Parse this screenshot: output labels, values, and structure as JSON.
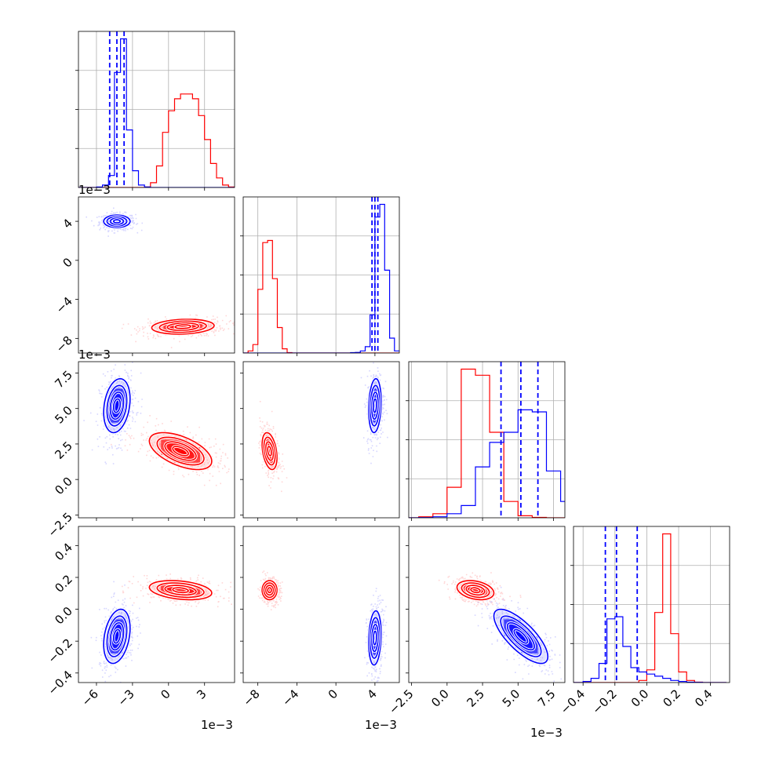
{
  "chart_data": {
    "type": "corner",
    "colors": {
      "series_a": "#0000ff",
      "series_b": "#ff0000",
      "grid": "#b0b0b0",
      "axes": "#000000"
    },
    "series": [
      {
        "color": "#0000ff",
        "quantiles": [
          [
            -0.0049,
            -0.0043,
            -0.0037
          ],
          [
            0.0037,
            0.004,
            0.0043
          ],
          [
            0.0038,
            0.0052,
            0.0064
          ],
          [
            -0.26,
            -0.19,
            -0.06
          ]
        ]
      },
      {
        "color": "#ff0000"
      }
    ],
    "params": [
      {
        "range": [
          -0.0075,
          0.0055
        ],
        "tick_values": [
          -0.006,
          -0.003,
          0.0,
          0.003
        ],
        "tick_labels": [
          "−6",
          "−3",
          "0",
          "3"
        ],
        "offset": "1e−3"
      },
      {
        "range": [
          -0.0095,
          0.0065
        ],
        "tick_values": [
          -0.008,
          -0.004,
          0.0,
          0.004
        ],
        "tick_labels": [
          "−8",
          "−4",
          "0",
          "4"
        ],
        "offset": "1e−3"
      },
      {
        "range": [
          -0.0027,
          0.0083
        ],
        "tick_values": [
          -0.0025,
          0.0,
          0.0025,
          0.005,
          0.0075
        ],
        "tick_labels": [
          "−2.5",
          "0.0",
          "2.5",
          "5.0",
          "7.5"
        ],
        "offset": "1e−3"
      },
      {
        "range": [
          -0.46,
          0.52
        ],
        "tick_values": [
          -0.4,
          -0.2,
          0.0,
          0.2,
          0.4
        ],
        "tick_labels": [
          "−0.4",
          "−0.2",
          "0.0",
          "0.2",
          "0.4"
        ],
        "offset": ""
      }
    ],
    "offset_labels": {
      "row1": "1e−3",
      "row2": "1e−3",
      "p0_bottom": "1e−3",
      "p1_bottom": "1e−3",
      "p2_bottom": "1e−3"
    },
    "histograms": [
      {
        "bins": [
          -0.0075,
          -0.007,
          -0.0065,
          -0.006,
          -0.0055,
          -0.005,
          -0.0045,
          -0.004,
          -0.0035,
          -0.003,
          -0.0025,
          -0.002,
          -0.0015,
          -0.001,
          -0.0005,
          0.0,
          0.0005,
          0.001,
          0.0015,
          0.002,
          0.0025,
          0.003,
          0.0035,
          0.004,
          0.0045,
          0.005,
          0.0055
        ],
        "counts_a": [
          0,
          0,
          0,
          0.2,
          1,
          5,
          48,
          62,
          24,
          7,
          1,
          0.2,
          0,
          0,
          0,
          0,
          0,
          0,
          0,
          0,
          0,
          0,
          0,
          0,
          0,
          0
        ],
        "counts_b": [
          0,
          0,
          0,
          0,
          0,
          0,
          0,
          0,
          0,
          0,
          0,
          0.2,
          2,
          9,
          23,
          32,
          37,
          39,
          39,
          37,
          30,
          20,
          10,
          4,
          1,
          0.2
        ]
      },
      {
        "bins": [
          -0.0095,
          -0.009,
          -0.0085,
          -0.008,
          -0.0075,
          -0.007,
          -0.0065,
          -0.006,
          -0.0055,
          -0.005,
          -0.0045,
          -0.004,
          -0.0035,
          -0.003,
          -0.0025,
          -0.002,
          -0.0015,
          -0.001,
          -0.0005,
          0.0,
          0.0005,
          0.001,
          0.0015,
          0.002,
          0.0025,
          0.003,
          0.0035,
          0.004,
          0.0045,
          0.005,
          0.0055,
          0.006,
          0.0065
        ],
        "counts_a": [
          0,
          0,
          0,
          0,
          0,
          0,
          0,
          0,
          0,
          0,
          0,
          0,
          0,
          0,
          0,
          0,
          0,
          0,
          0,
          0,
          0,
          0,
          0.2,
          0.3,
          1,
          3,
          18,
          64,
          70,
          39,
          7,
          1
        ],
        "counts_b": [
          0,
          1,
          4,
          30,
          52,
          53,
          35,
          12,
          2,
          0.2,
          0,
          0,
          0,
          0,
          0,
          0,
          0,
          0,
          0,
          0,
          0,
          0,
          0,
          0,
          0,
          0,
          0,
          0,
          0,
          0,
          0,
          0
        ]
      },
      {
        "bins": [
          -0.003,
          -0.002,
          -0.001,
          0.0,
          0.001,
          0.002,
          0.003,
          0.004,
          0.005,
          0.006,
          0.007,
          0.008,
          0.009
        ],
        "counts_a": [
          0,
          0.1,
          0.5,
          2,
          6,
          25,
          37,
          42,
          53,
          52,
          23,
          8
        ],
        "counts_b": [
          0,
          0.5,
          2,
          15,
          73,
          70,
          42,
          8,
          1,
          0.2,
          0,
          0
        ]
      },
      {
        "bins": [
          -0.5,
          -0.45,
          -0.4,
          -0.35,
          -0.3,
          -0.25,
          -0.2,
          -0.15,
          -0.1,
          -0.05,
          0.0,
          0.05,
          0.1,
          0.15,
          0.2,
          0.25,
          0.3,
          0.35,
          0.4,
          0.45,
          0.5
        ],
        "counts_a": [
          0,
          0,
          0.5,
          2,
          9,
          30,
          31,
          17,
          7,
          5,
          4,
          3,
          2,
          1,
          0.5,
          0.2,
          0.1,
          0,
          0,
          0
        ],
        "counts_b": [
          0,
          0,
          0,
          0,
          0,
          0,
          0,
          0,
          0,
          1,
          6,
          33,
          70,
          23,
          5,
          1,
          0.2,
          0,
          0,
          0
        ]
      }
    ],
    "contours": [
      {
        "pair": [
          0,
          1
        ],
        "clusters": [
          {
            "color": "#0000ff",
            "mu": [
              -0.0043,
              0.004
            ],
            "sd": [
              0.00055,
              0.00032
            ],
            "rho": 0.0
          },
          {
            "color": "#ff0000",
            "mu": [
              0.0012,
              -0.0068
            ],
            "sd": [
              0.0013,
              0.00038
            ],
            "rho": 0.15
          }
        ]
      },
      {
        "pair": [
          0,
          2
        ],
        "clusters": [
          {
            "color": "#0000ff",
            "mu": [
              -0.0043,
              0.0052
            ],
            "sd": [
              0.00055,
              0.00095
            ],
            "rho": 0.25
          },
          {
            "color": "#ff0000",
            "mu": [
              0.001,
              0.002
            ],
            "sd": [
              0.0013,
              0.00065
            ],
            "rho": -0.55
          }
        ]
      },
      {
        "pair": [
          1,
          2
        ],
        "clusters": [
          {
            "color": "#0000ff",
            "mu": [
              0.004,
              0.0052
            ],
            "sd": [
              0.00032,
              0.00095
            ],
            "rho": 0.15
          },
          {
            "color": "#ff0000",
            "mu": [
              -0.0068,
              0.002
            ],
            "sd": [
              0.00038,
              0.00065
            ],
            "rho": -0.35
          }
        ]
      },
      {
        "pair": [
          0,
          3
        ],
        "clusters": [
          {
            "color": "#0000ff",
            "mu": [
              -0.0043,
              -0.17
            ],
            "sd": [
              0.00055,
              0.085
            ],
            "rho": 0.3
          },
          {
            "color": "#ff0000",
            "mu": [
              0.001,
              0.12
            ],
            "sd": [
              0.0013,
              0.03
            ],
            "rho": -0.3
          }
        ]
      },
      {
        "pair": [
          1,
          3
        ],
        "clusters": [
          {
            "color": "#0000ff",
            "mu": [
              0.004,
              -0.18
            ],
            "sd": [
              0.00032,
              0.085
            ],
            "rho": 0.15
          },
          {
            "color": "#ff0000",
            "mu": [
              -0.0068,
              0.12
            ],
            "sd": [
              0.00038,
              0.03
            ],
            "rho": 0.0
          }
        ]
      },
      {
        "pair": [
          2,
          3
        ],
        "clusters": [
          {
            "color": "#0000ff",
            "mu": [
              0.0052,
              -0.17
            ],
            "sd": [
              0.00095,
              0.085
            ],
            "rho": -0.75
          },
          {
            "color": "#ff0000",
            "mu": [
              0.002,
              0.12
            ],
            "sd": [
              0.00065,
              0.03
            ],
            "rho": -0.3
          }
        ]
      }
    ]
  }
}
